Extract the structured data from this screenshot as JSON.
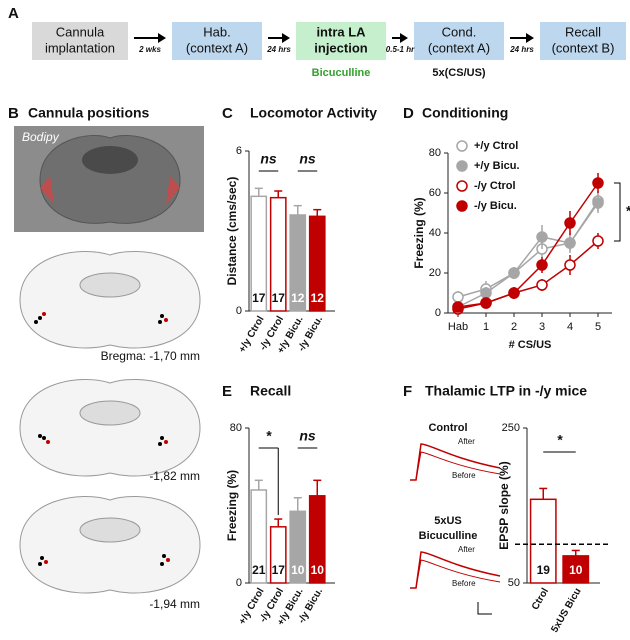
{
  "panel_a": {
    "label": "A",
    "steps": [
      {
        "lines": [
          "Cannula",
          "implantation"
        ],
        "color": "#d9d9d9"
      },
      {
        "lines": [
          "Hab.",
          "(context A)"
        ],
        "color": "#bdd7ee"
      },
      {
        "lines": [
          "intra LA",
          "injection"
        ],
        "color": "#c6efce"
      },
      {
        "lines": [
          "Cond.",
          "(context A)"
        ],
        "color": "#bdd7ee"
      },
      {
        "lines": [
          "Recall",
          "(context B)"
        ],
        "color": "#bdd7ee"
      }
    ],
    "intervals": [
      "2 wks",
      "24 hrs",
      "0.5-1 hr",
      "24 hrs"
    ],
    "notes": [
      "Bicuculline",
      "5x(CS/US)"
    ]
  },
  "panel_b": {
    "label": "B",
    "title": "Cannula positions",
    "image_label": "Bodipy",
    "sections": [
      "Bregma: -1,70 mm",
      "-1,82 mm",
      "-1,94 mm"
    ]
  },
  "chart_data": [
    {
      "type": "bar",
      "panel": "C",
      "title": "Locomotor Activity",
      "ylabel": "Distance (cms/sec)",
      "categories": [
        "+/y Ctrol",
        "-/y Ctrol",
        "+/y Bicu.",
        "-/y Bicu."
      ],
      "values": [
        4.3,
        4.25,
        3.6,
        3.55
      ],
      "errors": [
        0.3,
        0.25,
        0.35,
        0.25
      ],
      "n": [
        17,
        17,
        12,
        12
      ],
      "colors": [
        "#ffffff",
        "#ffffff",
        "#a6a6a6",
        "#c00000"
      ],
      "edge_colors": [
        "#a6a6a6",
        "#c00000",
        "#a6a6a6",
        "#c00000"
      ],
      "ylim": [
        0,
        6
      ],
      "yticks": [
        0,
        6
      ],
      "annotations": [
        "ns",
        "ns"
      ]
    },
    {
      "type": "line",
      "panel": "D",
      "title": "Conditioning",
      "ylabel": "Freezing (%)",
      "xlabel": "# CS/US",
      "categories": [
        "Hab",
        "1",
        "2",
        "3",
        "4",
        "5"
      ],
      "series": [
        {
          "name": "+/y Ctrol",
          "color": "#a6a6a6",
          "fill": "#ffffff",
          "values": [
            8,
            12,
            20,
            32,
            35,
            56
          ],
          "errors": [
            3,
            4,
            3,
            4,
            4,
            5
          ]
        },
        {
          "name": "+/y Bicu.",
          "color": "#a6a6a6",
          "fill": "#a6a6a6",
          "values": [
            3,
            10,
            20,
            38,
            35,
            55
          ],
          "errors": [
            2,
            3,
            3,
            6,
            5,
            5
          ]
        },
        {
          "name": "-/y Ctrol",
          "color": "#c00000",
          "fill": "#ffffff",
          "values": [
            2,
            5,
            10,
            14,
            24,
            36
          ],
          "errors": [
            2,
            2,
            2,
            3,
            5,
            4
          ]
        },
        {
          "name": "-/y Bicu.",
          "color": "#c00000",
          "fill": "#c00000",
          "values": [
            3,
            5,
            10,
            24,
            45,
            65
          ],
          "errors": [
            2,
            2,
            3,
            4,
            6,
            5
          ]
        }
      ],
      "ylim": [
        0,
        80
      ],
      "yticks": [
        0,
        20,
        40,
        60,
        80
      ],
      "legend": "upper left",
      "annotations": [
        "*"
      ]
    },
    {
      "type": "bar",
      "panel": "E",
      "title": "Recall",
      "ylabel": "Freezing (%)",
      "categories": [
        "+/y Ctrol",
        "-/y Ctrol",
        "+/y Bicu.",
        "-/y Bicu."
      ],
      "values": [
        48,
        29,
        37,
        45
      ],
      "errors": [
        5,
        4,
        7,
        8
      ],
      "n": [
        21,
        17,
        10,
        10
      ],
      "colors": [
        "#ffffff",
        "#ffffff",
        "#a6a6a6",
        "#c00000"
      ],
      "edge_colors": [
        "#a6a6a6",
        "#c00000",
        "#a6a6a6",
        "#c00000"
      ],
      "ylim": [
        0,
        80
      ],
      "yticks": [
        0,
        80
      ],
      "annotations": [
        "*",
        "ns"
      ]
    },
    {
      "type": "bar",
      "panel": "F",
      "title": "Thalamic LTP in -/y mice",
      "ylabel": "EPSP slope (%)",
      "categories": [
        "Ctrol",
        "5xUS Bicu"
      ],
      "values": [
        158,
        85
      ],
      "errors": [
        14,
        7
      ],
      "n": [
        19,
        10
      ],
      "colors": [
        "#ffffff",
        "#c00000"
      ],
      "edge_colors": [
        "#c00000",
        "#c00000"
      ],
      "ylim": [
        50,
        250
      ],
      "yticks": [
        50,
        250
      ],
      "reference_line": 100,
      "annotations": [
        "*"
      ],
      "traces": [
        {
          "title_lines": [
            "Control"
          ],
          "after": "After",
          "before": "Before"
        },
        {
          "title_lines": [
            "5xUS",
            "Bicuculline"
          ],
          "after": "After",
          "before": "Before"
        }
      ]
    }
  ]
}
